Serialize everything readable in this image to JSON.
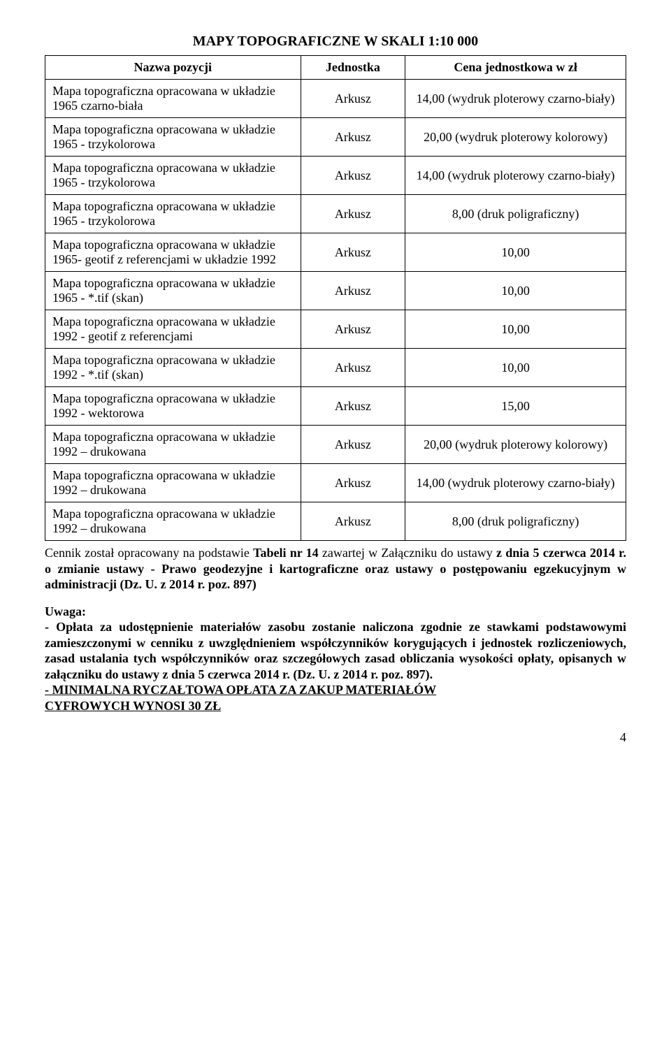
{
  "title": "MAPY TOPOGRAFICZNE W SKALI 1:10 000",
  "columns": [
    "Nazwa pozycji",
    "Jednostka",
    "Cena jednostkowa w zł"
  ],
  "unit": "Arkusz",
  "rows": [
    {
      "name": "Mapa topograficzna opracowana w układzie 1965 czarno-biała",
      "price": "14,00 (wydruk ploterowy czarno-biały)"
    },
    {
      "name": "Mapa topograficzna opracowana w układzie 1965 - trzykolorowa",
      "price": "20,00 (wydruk ploterowy kolorowy)"
    },
    {
      "name": "Mapa topograficzna opracowana w układzie 1965 - trzykolorowa",
      "price": "14,00 (wydruk ploterowy czarno-biały)"
    },
    {
      "name": "Mapa topograficzna opracowana w układzie 1965 - trzykolorowa",
      "price": "8,00 (druk poligraficzny)"
    },
    {
      "name": "Mapa topograficzna opracowana w układzie 1965- geotif z referencjami w układzie 1992",
      "price": "10,00"
    },
    {
      "name": "Mapa topograficzna opracowana w układzie 1965 - *.tif (skan)",
      "price": "10,00"
    },
    {
      "name": "Mapa topograficzna opracowana w układzie 1992 - geotif z referencjami",
      "price": "10,00"
    },
    {
      "name": "Mapa topograficzna opracowana w układzie 1992 - *.tif (skan)",
      "price": "10,00"
    },
    {
      "name": "Mapa topograficzna opracowana w układzie 1992 - wektorowa",
      "price": "15,00"
    },
    {
      "name": "Mapa topograficzna opracowana w układzie 1992 – drukowana",
      "price": "20,00 (wydruk ploterowy kolorowy)"
    },
    {
      "name": "Mapa topograficzna opracowana w układzie 1992 – drukowana",
      "price": "14,00 (wydruk ploterowy czarno-biały)"
    },
    {
      "name": "Mapa topograficzna opracowana w układzie 1992 – drukowana",
      "price": "8,00 (druk poligraficzny)"
    }
  ],
  "footer": {
    "cennik_pre": "Cennik został opracowany na podstawie ",
    "cennik_bold1": "Tabeli nr 14",
    "cennik_mid": " zawartej w Załączniku do ustawy ",
    "cennik_bold2": "z dnia 5 czerwca 2014 r. o zmianie ustawy  - Prawo geodezyjne i kartograficzne oraz ustawy o postępowaniu egzekucyjnym w administracji (Dz. U. z 2014 r. poz. 897)",
    "uwaga_label": "Uwaga:",
    "uwaga_text": "- Opłata za udostępnienie materiałów zasobu zostanie naliczona zgodnie ze stawkami podstawowymi zamieszczonymi w cenniku z uwzględnieniem współczynników korygujących i jednostek rozliczeniowych, zasad ustalania tych współczynników oraz szczegółowych zasad obliczania wysokości opłaty, opisanych w załączniku do ustawy z dnia 5 czerwca 2014 r. (Dz. U. z 2014 r. poz. 897).",
    "min_line1": "- MINIMALNA RYCZAŁTOWA OPŁATA ZA ZAKUP MATERIAŁÓW",
    "min_line2": "CYFROWYCH WYNOSI 30 ZŁ"
  },
  "page_number": "4"
}
